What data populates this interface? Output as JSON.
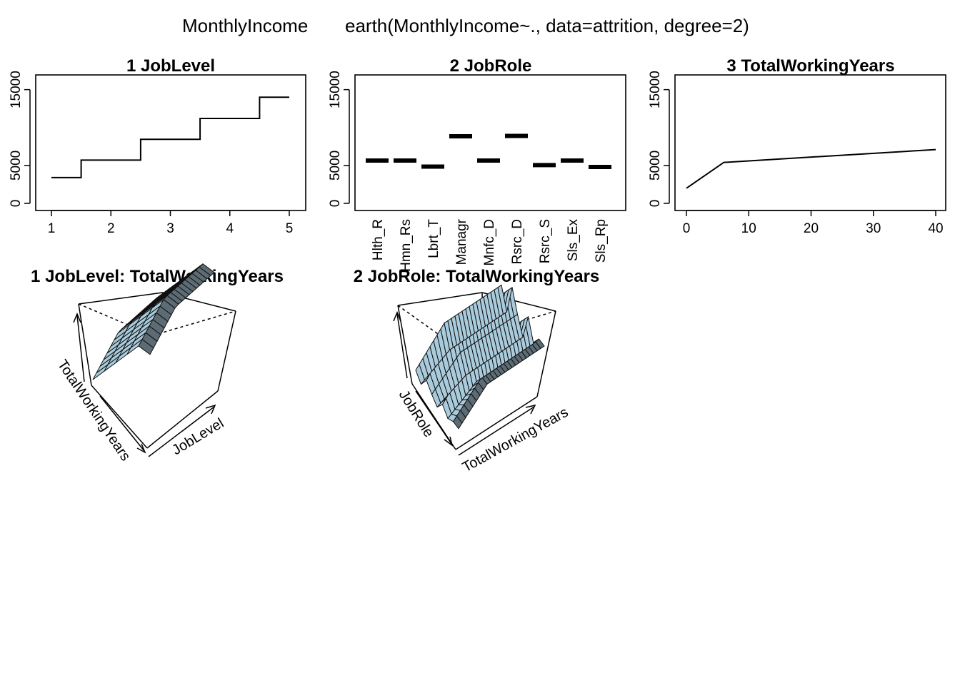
{
  "page": {
    "title_left": "MonthlyIncome",
    "title_right": "earth(MonthlyIncome~., data=attrition, degree=2)"
  },
  "colors": {
    "line": "#000000",
    "surface_front": "#5c6b74",
    "surface_top": "#a9cbdc",
    "surface_edge": "#111111"
  },
  "chart_data": [
    {
      "type": "line",
      "title": "1  JobLevel",
      "xlabel": "",
      "ylabel": "",
      "xlim": [
        1,
        5
      ],
      "ylim": [
        0,
        16000
      ],
      "xticks": [
        "1",
        "2",
        "3",
        "4",
        "5"
      ],
      "yticks": [
        "0",
        "5000",
        "15000"
      ],
      "step": true,
      "series": [
        {
          "x": [
            1,
            1.5,
            1.5,
            2.5,
            2.5,
            3.5,
            3.5,
            4.5,
            4.5,
            5
          ],
          "y": [
            3400,
            3400,
            5700,
            5700,
            8450,
            8450,
            11200,
            11200,
            14000,
            14000
          ]
        }
      ]
    },
    {
      "type": "bar",
      "title": "2  JobRole",
      "xlabel": "",
      "ylabel": "",
      "ylim": [
        0,
        16000
      ],
      "yticks": [
        "0",
        "5000",
        "15000"
      ],
      "categories": [
        "Hlth_R",
        "Hmn_Rs",
        "Lbrt_T",
        "Managr",
        "Mnfc_D",
        "Rsrc_D",
        "Rsrc_S",
        "Sls_Ex",
        "Sls_Rp"
      ],
      "values": [
        5650,
        5650,
        4850,
        8850,
        5650,
        8900,
        5050,
        5650,
        4800
      ]
    },
    {
      "type": "line",
      "title": "3  TotalWorkingYears",
      "xlabel": "",
      "ylabel": "",
      "xlim": [
        0,
        40
      ],
      "ylim": [
        0,
        16000
      ],
      "xticks": [
        "0",
        "10",
        "20",
        "30",
        "40"
      ],
      "yticks": [
        "0",
        "5000",
        "15000"
      ],
      "series": [
        {
          "x": [
            0,
            6,
            40
          ],
          "y": [
            2000,
            5400,
            7100
          ]
        }
      ]
    },
    {
      "type": "surface",
      "title": "1 JobLevel: TotalWorkingYears",
      "axis_labels": [
        "TotalWorkingYears",
        "JobLevel"
      ]
    },
    {
      "type": "surface",
      "title": "2 JobRole: TotalWorkingYears",
      "axis_labels": [
        "JobRole",
        "TotalWorkingYears"
      ]
    }
  ]
}
